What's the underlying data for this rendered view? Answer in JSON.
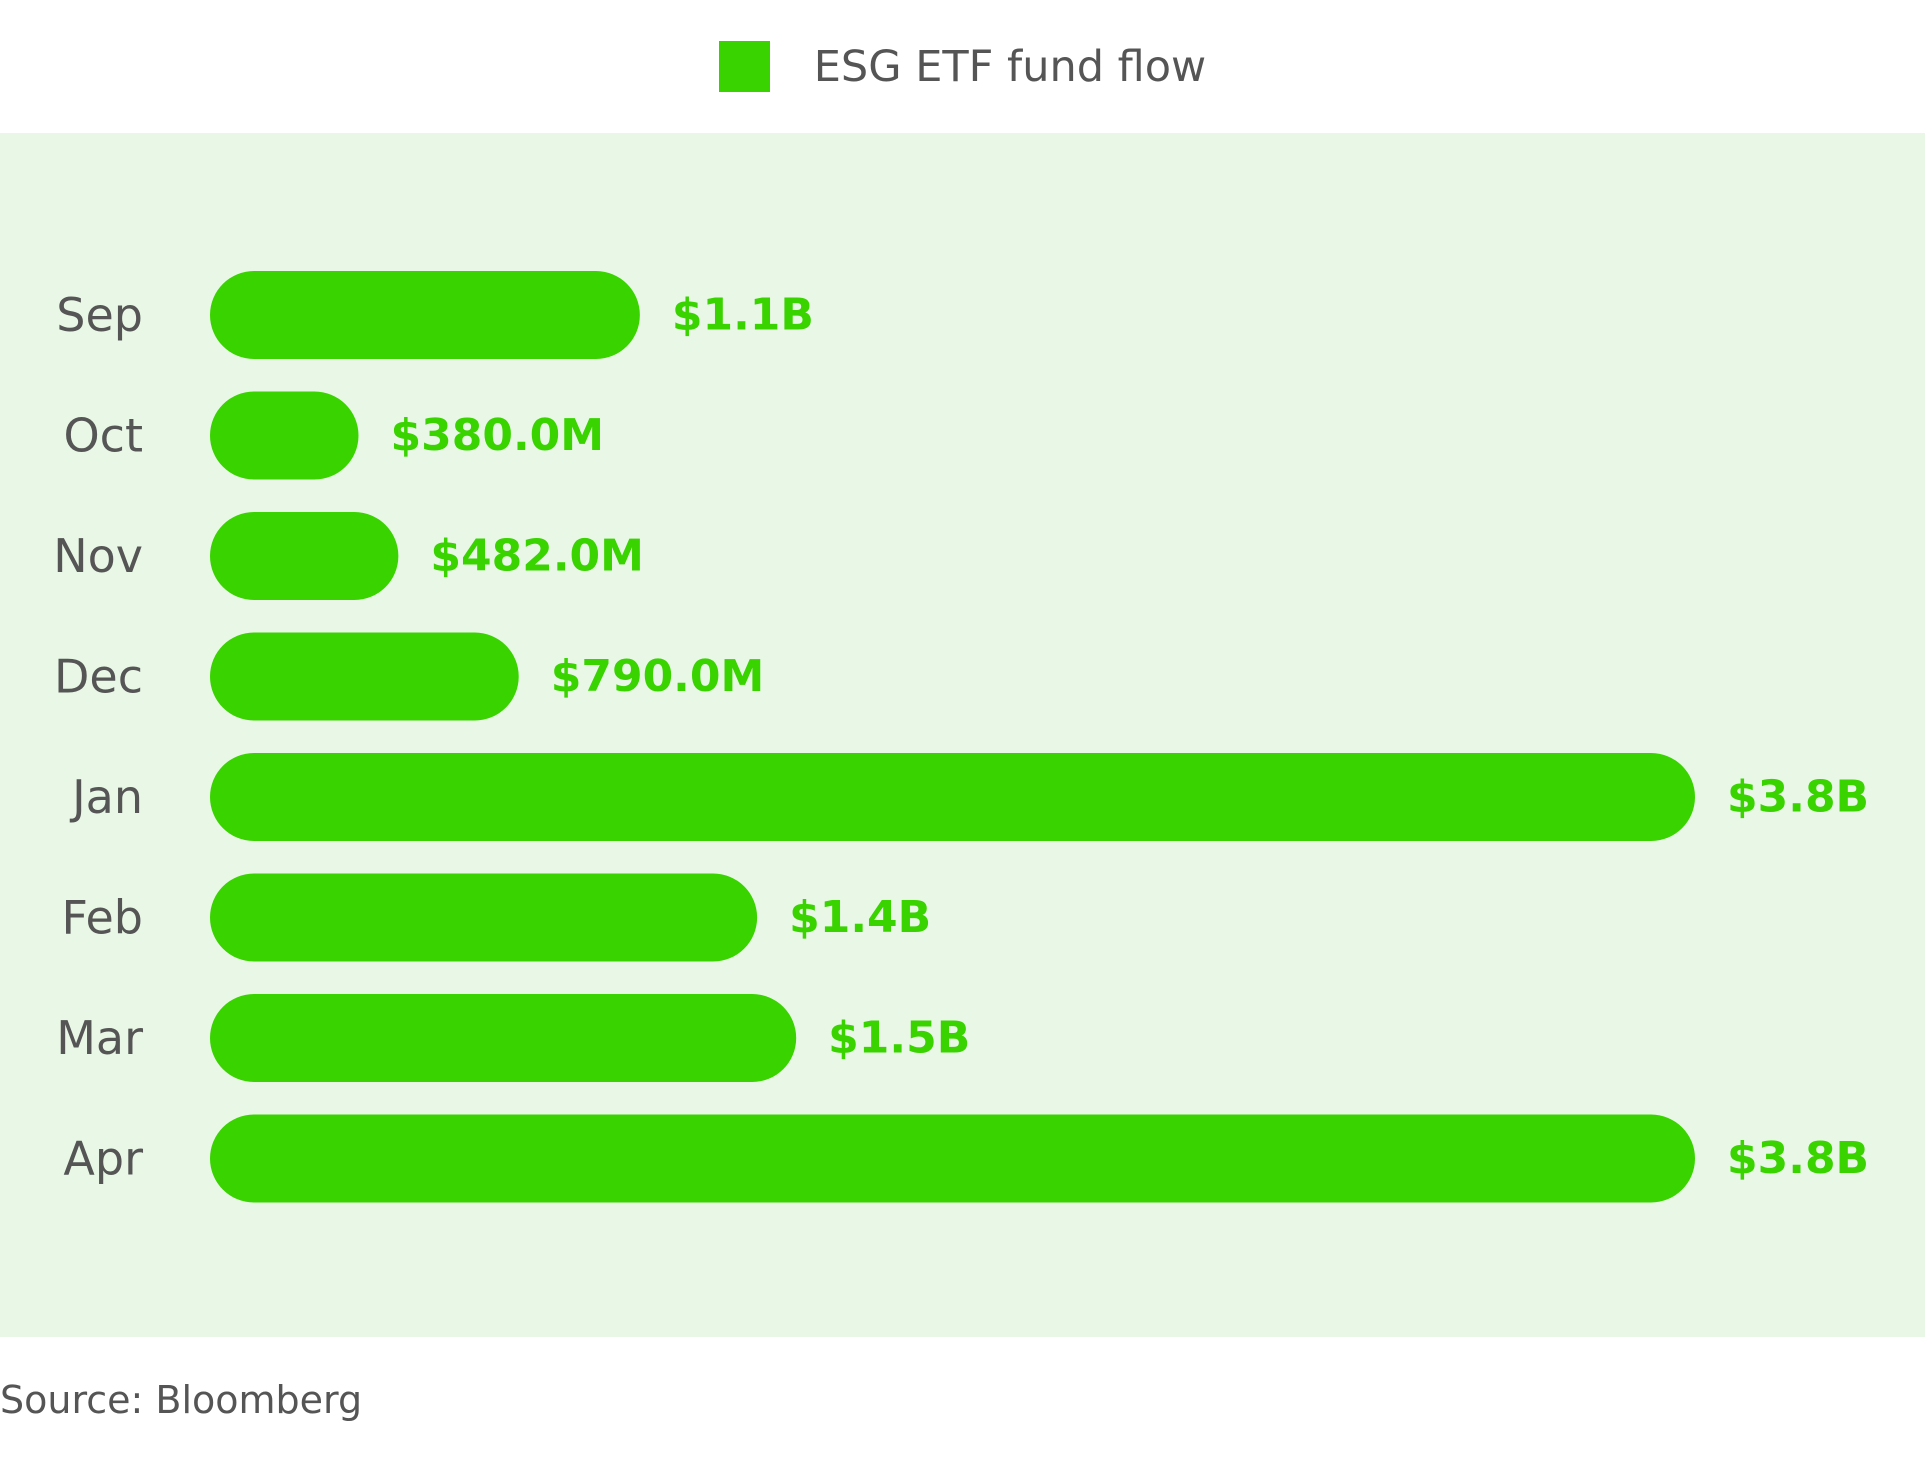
{
  "chart_data": {
    "type": "bar",
    "orientation": "horizontal",
    "legend": {
      "label": "ESG ETF fund flow",
      "position": "top-center"
    },
    "categories": [
      "Sep",
      "Oct",
      "Nov",
      "Dec",
      "Jan",
      "Feb",
      "Mar",
      "Apr"
    ],
    "series": [
      {
        "name": "ESG ETF fund flow",
        "values": [
          1100,
          380,
          482,
          790,
          3800,
          1400,
          1500,
          3800
        ],
        "value_unit": "million USD",
        "data_labels": [
          "$1.1B",
          "$380.0M",
          "$482.0M",
          "$790.0M",
          "$3.8B",
          "$1.4B",
          "$1.5B",
          "$3.8B"
        ]
      }
    ],
    "xlim": [
      0,
      3800
    ],
    "grid": false
  },
  "colors": {
    "bar": "#39d300",
    "label": "#39d300",
    "text": "#555555",
    "plot_background": "#e9f8e6"
  },
  "source": "Source: Bloomberg"
}
